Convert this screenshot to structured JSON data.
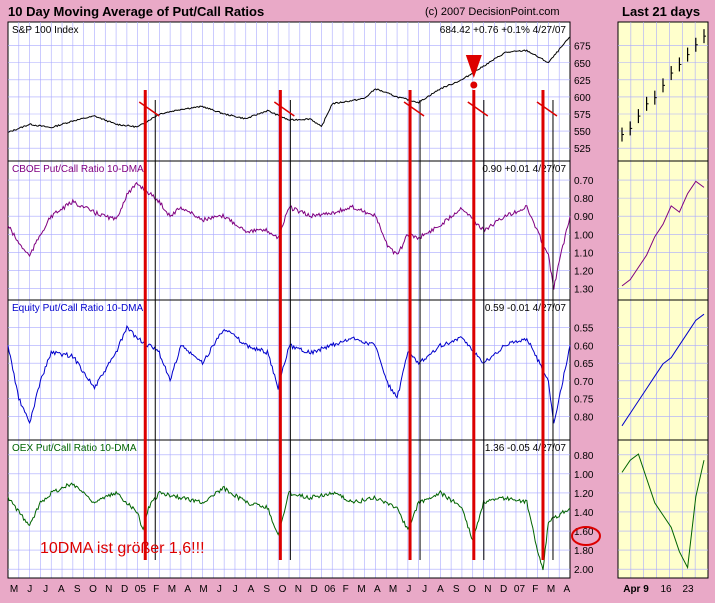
{
  "title": "10 Day Moving Average of Put/Call Ratios",
  "copyright": "(c) 2007 DecisionPoint.com",
  "right_title": "Last 21 days",
  "annotation": "10DMA ist größer 1,6!!!",
  "colors": {
    "background": "#e9a9c7",
    "plot_bg": "#ffffff",
    "right_bg": "#ffffcc",
    "grid": "#a9a9ff",
    "spx": "#000000",
    "cboe": "#800080",
    "equity": "#0000cc",
    "oex": "#006400",
    "signal": "#dd0000"
  },
  "chart_data": [
    {
      "type": "line",
      "id": "spx",
      "title": "S&P 100 Index",
      "last_value": "684.42",
      "change": "+0.76",
      "change_pct": "+0.1%",
      "date": "4/27/07",
      "ylim": [
        515,
        695
      ],
      "yticks": [
        "675",
        "650",
        "625",
        "600",
        "575",
        "550",
        "525"
      ],
      "x": [
        0,
        2,
        4,
        6,
        8,
        10,
        12,
        14,
        16,
        18,
        20,
        22,
        24,
        26,
        28,
        29,
        30,
        32,
        33,
        34,
        36,
        38,
        40,
        42,
        44,
        45,
        46,
        48,
        50,
        52
      ],
      "values": [
        548,
        560,
        555,
        565,
        572,
        560,
        556,
        575,
        582,
        586,
        575,
        568,
        580,
        566,
        568,
        556,
        590,
        595,
        598,
        612,
        600,
        592,
        612,
        625,
        645,
        655,
        665,
        668,
        650,
        688
      ]
    },
    {
      "type": "line",
      "id": "cboe",
      "title": "CBOE Put/Call Ratio 10-DMA",
      "last_value": "0.90",
      "change": "+0.01",
      "date": "4/27/07",
      "ylim": [
        0.65,
        1.33
      ],
      "inverted": true,
      "yticks": [
        "0.70",
        "0.80",
        "0.90",
        "1.00",
        "1.10",
        "1.20",
        "1.30"
      ],
      "x": [
        0,
        1,
        2,
        3,
        4,
        6,
        8,
        10,
        11,
        12,
        14,
        15,
        16,
        18,
        20,
        22,
        24,
        25,
        26,
        28,
        30,
        32,
        34,
        35,
        36,
        37,
        38,
        40,
        42,
        44,
        46,
        48,
        50,
        50.5,
        51,
        52
      ],
      "values": [
        0.95,
        1.05,
        1.12,
        1.0,
        0.9,
        0.82,
        0.88,
        0.92,
        0.78,
        0.72,
        0.82,
        0.9,
        0.85,
        0.92,
        0.9,
        0.98,
        0.98,
        1.02,
        0.85,
        0.9,
        0.88,
        0.85,
        0.9,
        1.05,
        1.12,
        1.0,
        1.02,
        0.95,
        0.85,
        0.98,
        0.9,
        0.85,
        1.12,
        1.3,
        1.15,
        0.9
      ]
    },
    {
      "type": "line",
      "id": "equity",
      "title": "Equity Put/Call Ratio 10-DMA",
      "last_value": "0.59",
      "change": "-0.01",
      "date": "4/27/07",
      "ylim": [
        0.5,
        0.85
      ],
      "inverted": true,
      "yticks": [
        "0.55",
        "0.60",
        "0.65",
        "0.70",
        "0.75",
        "0.80"
      ],
      "x": [
        0,
        1,
        2,
        3,
        4,
        6,
        8,
        10,
        11,
        12,
        14,
        15,
        16,
        18,
        20,
        22,
        24,
        25,
        26,
        28,
        30,
        32,
        34,
        35,
        36,
        37,
        38,
        40,
        42,
        44,
        46,
        48,
        50,
        50.5,
        51,
        52
      ],
      "values": [
        0.6,
        0.75,
        0.82,
        0.7,
        0.62,
        0.63,
        0.72,
        0.62,
        0.55,
        0.58,
        0.62,
        0.7,
        0.6,
        0.65,
        0.55,
        0.6,
        0.62,
        0.72,
        0.6,
        0.62,
        0.6,
        0.58,
        0.6,
        0.7,
        0.75,
        0.62,
        0.65,
        0.6,
        0.58,
        0.65,
        0.6,
        0.58,
        0.7,
        0.82,
        0.75,
        0.6
      ]
    },
    {
      "type": "line",
      "id": "oex",
      "title": "OEX Put/Call Ratio 10-DMA",
      "last_value": "1.36",
      "change": "-0.05",
      "date": "4/27/07",
      "ylim": [
        0.75,
        2.03
      ],
      "inverted": true,
      "yticks": [
        "0.80",
        "1.00",
        "1.20",
        "1.40",
        "1.60",
        "1.80",
        "2.00"
      ],
      "x": [
        0,
        1,
        2,
        3,
        4,
        6,
        8,
        10,
        12,
        12.5,
        13,
        14,
        16,
        18,
        20,
        22,
        24,
        25,
        26,
        28,
        30,
        32,
        34,
        36,
        37,
        38,
        40,
        42,
        43,
        44,
        46,
        48,
        49,
        49.5,
        50,
        52
      ],
      "values": [
        1.25,
        1.4,
        1.55,
        1.3,
        1.2,
        1.1,
        1.3,
        1.2,
        1.4,
        1.6,
        1.35,
        1.2,
        1.25,
        1.3,
        1.15,
        1.3,
        1.35,
        1.65,
        1.2,
        1.25,
        1.2,
        1.3,
        1.25,
        1.35,
        1.6,
        1.3,
        1.2,
        1.35,
        1.7,
        1.3,
        1.25,
        1.3,
        1.8,
        2.0,
        1.5,
        1.36
      ]
    },
    {
      "type": "line",
      "id": "last21-spx",
      "title": "Last 21 days",
      "ylim": [
        0,
        1
      ],
      "x": [
        0,
        2,
        4,
        6,
        8,
        10,
        12,
        14,
        16,
        18,
        20
      ],
      "values": [
        0.15,
        0.2,
        0.3,
        0.4,
        0.45,
        0.55,
        0.65,
        0.72,
        0.8,
        0.88,
        0.95
      ]
    },
    {
      "type": "line",
      "id": "last21-cboe",
      "ylim": [
        0,
        1
      ],
      "x": [
        0,
        2,
        4,
        6,
        8,
        10,
        12,
        14,
        16,
        18,
        20
      ],
      "values": [
        0.05,
        0.1,
        0.2,
        0.3,
        0.45,
        0.55,
        0.7,
        0.65,
        0.8,
        0.9,
        0.85
      ]
    },
    {
      "type": "line",
      "id": "last21-equity",
      "ylim": [
        0,
        1
      ],
      "x": [
        0,
        2,
        4,
        6,
        8,
        10,
        12,
        14,
        16,
        18,
        20
      ],
      "values": [
        0.05,
        0.15,
        0.25,
        0.35,
        0.45,
        0.55,
        0.6,
        0.7,
        0.8,
        0.9,
        0.95
      ]
    },
    {
      "type": "line",
      "id": "last21-oex",
      "ylim": [
        0,
        1
      ],
      "x": [
        0,
        2,
        4,
        6,
        8,
        10,
        12,
        14,
        16,
        18,
        20
      ],
      "values": [
        0.8,
        0.9,
        0.95,
        0.75,
        0.55,
        0.45,
        0.35,
        0.15,
        0.02,
        0.6,
        0.9
      ]
    }
  ],
  "x_axis": {
    "range": [
      0,
      52
    ],
    "labels": [
      {
        "x": 0,
        "label": "M"
      },
      {
        "x": 1,
        "label": "J"
      },
      {
        "x": 2,
        "label": "J"
      },
      {
        "x": 3,
        "label": "A"
      },
      {
        "x": 4,
        "label": "S"
      },
      {
        "x": 5,
        "label": "O"
      },
      {
        "x": 6,
        "label": "N"
      },
      {
        "x": 7,
        "label": "D"
      },
      {
        "x": 8,
        "label": "05"
      },
      {
        "x": 9,
        "label": "F"
      },
      {
        "x": 10,
        "label": "M"
      },
      {
        "x": 11,
        "label": "A"
      },
      {
        "x": 12,
        "label": "M"
      },
      {
        "x": 13,
        "label": "J"
      },
      {
        "x": 14,
        "label": "J"
      },
      {
        "x": 15,
        "label": "A"
      },
      {
        "x": 16,
        "label": "S"
      },
      {
        "x": 17,
        "label": "O"
      },
      {
        "x": 18,
        "label": "N"
      },
      {
        "x": 19,
        "label": "D"
      },
      {
        "x": 20,
        "label": "06"
      },
      {
        "x": 21,
        "label": "F"
      },
      {
        "x": 22,
        "label": "M"
      },
      {
        "x": 23,
        "label": "A"
      },
      {
        "x": 24,
        "label": "M"
      },
      {
        "x": 25,
        "label": "J"
      },
      {
        "x": 26,
        "label": "J"
      },
      {
        "x": 27,
        "label": "A"
      },
      {
        "x": 28,
        "label": "S"
      },
      {
        "x": 29,
        "label": "O"
      },
      {
        "x": 30,
        "label": "N"
      },
      {
        "x": 31,
        "label": "D"
      },
      {
        "x": 32,
        "label": "07"
      },
      {
        "x": 33,
        "label": "F"
      },
      {
        "x": 34,
        "label": "M"
      },
      {
        "x": 35,
        "label": "A"
      }
    ],
    "right_labels": [
      "Apr 9",
      "16",
      "23"
    ]
  },
  "signals": [
    {
      "x": 12.7
    },
    {
      "x": 25.2
    },
    {
      "x": 37.2
    },
    {
      "x": 43.1
    },
    {
      "x": 49.5
    }
  ]
}
